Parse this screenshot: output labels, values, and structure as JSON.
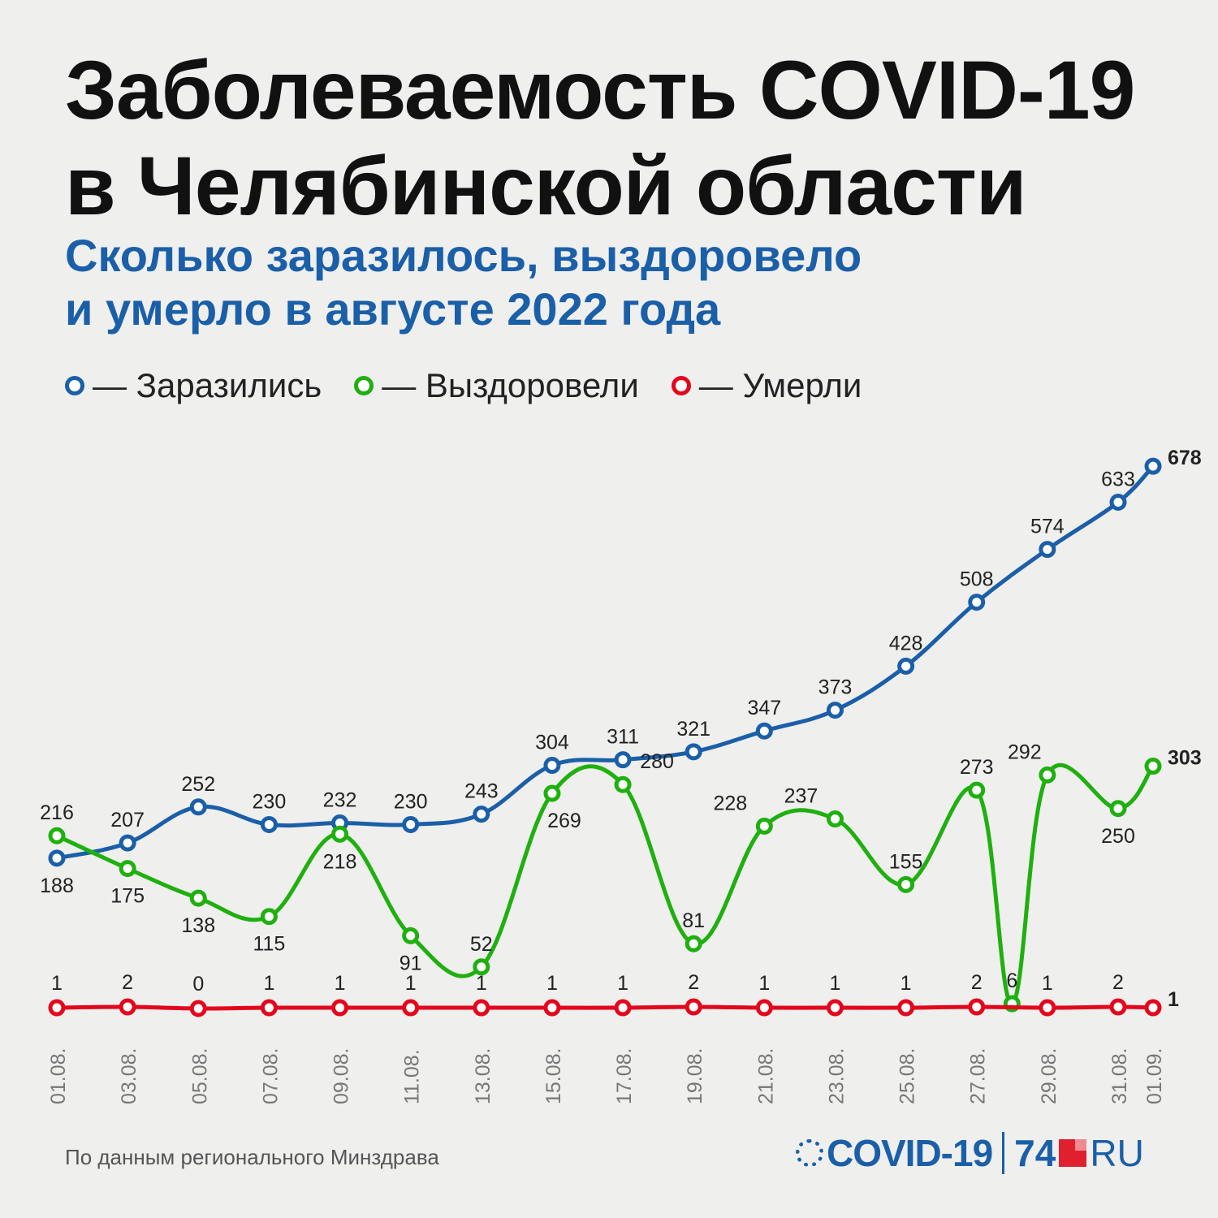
{
  "header": {
    "title_line1": "Заболеваемость COVID-19",
    "title_line2": "в Челябинской области",
    "subtitle_line1": "Сколько заразилось, выздоровело",
    "subtitle_line2": "и умерло в августе 2022 года"
  },
  "legend": {
    "infected": "— Заразились",
    "recovered": "— Выздоровели",
    "died": "— Умерли"
  },
  "colors": {
    "infected": "#1a5fa8",
    "recovered": "#1fb00f",
    "died": "#e3061c",
    "background": "#efefee"
  },
  "chart_data": {
    "type": "line",
    "x": [
      "01.08.",
      "03.08.",
      "05.08.",
      "07.08.",
      "09.08.",
      "11.08.",
      "13.08.",
      "15.08.",
      "17.08.",
      "19.08.",
      "21.08.",
      "23.08.",
      "25.08.",
      "27.08.",
      "29.08.",
      "31.08.",
      "01.09."
    ],
    "series": [
      {
        "name": "Заразились",
        "color": "#1a5fa8",
        "values": [
          188,
          207,
          252,
          230,
          232,
          230,
          243,
          304,
          311,
          321,
          347,
          373,
          428,
          508,
          574,
          633,
          678
        ]
      },
      {
        "name": "Выздоровели",
        "color": "#1fb00f",
        "values": [
          216,
          175,
          138,
          115,
          218,
          91,
          52,
          269,
          280,
          81,
          228,
          237,
          155,
          273,
          292,
          250,
          303
        ],
        "extra_points": [
          {
            "x": "28.08.",
            "value": 6
          }
        ]
      },
      {
        "name": "Умерли",
        "color": "#e3061c",
        "values": [
          1,
          2,
          0,
          1,
          1,
          1,
          1,
          1,
          1,
          2,
          1,
          1,
          1,
          2,
          1,
          2,
          1
        ]
      }
    ],
    "ylim": [
      0,
      700
    ],
    "grid": false,
    "legend_position": "top-left"
  },
  "footer": {
    "source": "По данным регионального Минздрава",
    "logo_covid": "COVID-19",
    "logo_74": "74",
    "logo_ru": "RU"
  }
}
